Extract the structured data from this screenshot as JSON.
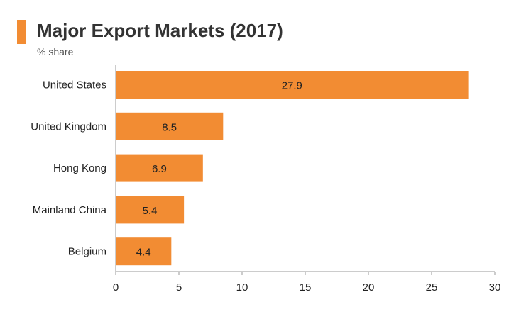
{
  "colors": {
    "accent": "#f28c33",
    "bar": "#f28c33",
    "axis": "#999999",
    "text": "#222222"
  },
  "chart_data": {
    "type": "bar",
    "orientation": "horizontal",
    "title": "Major Export Markets (2017)",
    "subtitle": "% share",
    "categories": [
      "United States",
      "United Kingdom",
      "Hong Kong",
      "Mainland China",
      "Belgium"
    ],
    "values": [
      27.9,
      8.5,
      6.9,
      5.4,
      4.4
    ],
    "data_labels": [
      "27.9",
      "8.5",
      "6.9",
      "5.4",
      "4.4"
    ],
    "xlim": [
      0,
      30
    ],
    "xticks": [
      0,
      5,
      10,
      15,
      20,
      25,
      30
    ],
    "grid": false,
    "legend": "none"
  }
}
